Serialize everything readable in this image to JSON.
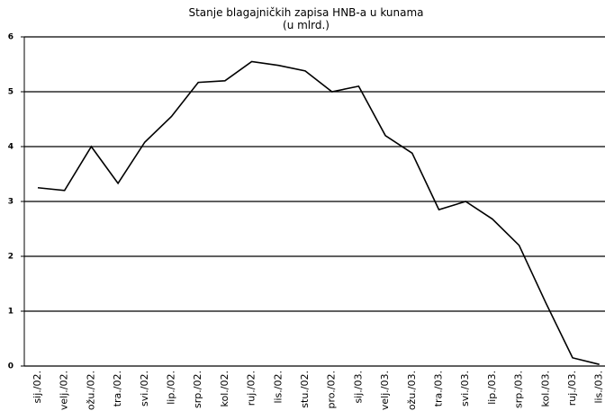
{
  "chart_data": {
    "type": "line",
    "title": "Stanje blagajničkih zapisa HNB-a u kunama",
    "subtitle": "(u mlrd.)",
    "categories": [
      "sij./02.",
      "velj./02.",
      "ožu./02.",
      "tra./02.",
      "svi./02.",
      "lip./02.",
      "srp./02.",
      "kol./02.",
      "ruj./02.",
      "lis./02.",
      "stu./02.",
      "pro./02.",
      "sij./03.",
      "velj./03.",
      "ožu./03.",
      "tra./03.",
      "svi./03.",
      "lip./03.",
      "srp./03.",
      "kol./03.",
      "ruj./03.",
      "lis./03."
    ],
    "series": [
      {
        "color": "#000000",
        "values": [
          3.25,
          3.2,
          4.0,
          3.33,
          4.08,
          4.55,
          5.17,
          5.2,
          5.55,
          5.48,
          5.38,
          5.0,
          5.1,
          4.2,
          3.88,
          2.85,
          3.0,
          2.68,
          2.2,
          1.15,
          0.15,
          0.03
        ]
      }
    ],
    "ylim": [
      0,
      6
    ],
    "yticks": [
      0,
      1,
      2,
      3,
      4,
      5,
      6
    ],
    "grid": true
  }
}
